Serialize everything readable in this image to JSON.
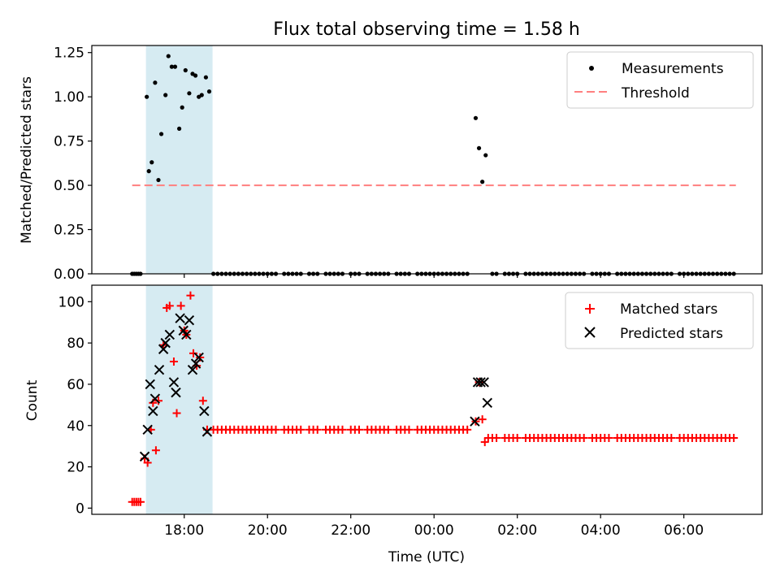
{
  "chart_data": {
    "type": "scatter",
    "title": "Flux total observing time = 1.58 h",
    "xlabel": "Time (UTC)",
    "x_unit": "hours since 00:00 (negative = previous day)",
    "xlim": [
      -8.22,
      7.88
    ],
    "xticks": [
      {
        "value": -6,
        "label": "18:00"
      },
      {
        "value": -4,
        "label": "20:00"
      },
      {
        "value": -2,
        "label": "22:00"
      },
      {
        "value": 0,
        "label": "00:00"
      },
      {
        "value": 2,
        "label": "02:00"
      },
      {
        "value": 4,
        "label": "04:00"
      },
      {
        "value": 6,
        "label": "06:00"
      }
    ],
    "observing_window": {
      "start": -6.92,
      "end": -5.32
    },
    "colors": {
      "measure": "#000000",
      "threshold": "#ff7f7f",
      "window": "#add8e6",
      "matched": "#ff0000",
      "predicted": "#000000"
    },
    "top": {
      "ylabel": "Matched/Predicted stars",
      "ylim": [
        0,
        1.29
      ],
      "yticks": [
        "0.00",
        "0.25",
        "0.50",
        "0.75",
        "1.00",
        "1.25"
      ],
      "threshold": {
        "value": 0.5,
        "x_start": -7.25,
        "x_end": 7.25
      },
      "legend": {
        "position": "upper right",
        "measure_label": "Measurements",
        "threshold_label": "Threshold"
      },
      "measurements": [
        [
          -7.25,
          0
        ],
        [
          -7.2,
          0
        ],
        [
          -7.15,
          0
        ],
        [
          -7.1,
          0
        ],
        [
          -7.05,
          0
        ],
        [
          -6.9,
          1.0
        ],
        [
          -6.85,
          0.58
        ],
        [
          -6.78,
          0.63
        ],
        [
          -6.7,
          1.08
        ],
        [
          -6.62,
          0.53
        ],
        [
          -6.55,
          0.79
        ],
        [
          -6.45,
          1.01
        ],
        [
          -6.38,
          1.23
        ],
        [
          -6.3,
          1.17
        ],
        [
          -6.22,
          1.17
        ],
        [
          -6.12,
          0.82
        ],
        [
          -6.05,
          0.94
        ],
        [
          -5.97,
          1.15
        ],
        [
          -5.88,
          1.02
        ],
        [
          -5.8,
          1.13
        ],
        [
          -5.73,
          1.12
        ],
        [
          -5.65,
          1.0
        ],
        [
          -5.58,
          1.01
        ],
        [
          -5.48,
          1.11
        ],
        [
          -5.4,
          1.03
        ],
        [
          -5.3,
          0
        ],
        [
          -5.2,
          0
        ],
        [
          -5.1,
          0
        ],
        [
          -5.0,
          0
        ],
        [
          -4.9,
          0
        ],
        [
          -4.8,
          0
        ],
        [
          -4.7,
          0
        ],
        [
          -4.6,
          0
        ],
        [
          -4.5,
          0
        ],
        [
          -4.4,
          0
        ],
        [
          -4.3,
          0
        ],
        [
          -4.2,
          0
        ],
        [
          -4.1,
          0
        ],
        [
          -4.0,
          0
        ],
        [
          -3.9,
          0
        ],
        [
          -3.8,
          0
        ],
        [
          -3.6,
          0
        ],
        [
          -3.5,
          0
        ],
        [
          -3.4,
          0
        ],
        [
          -3.3,
          0
        ],
        [
          -3.2,
          0
        ],
        [
          -3.0,
          0
        ],
        [
          -2.9,
          0
        ],
        [
          -2.8,
          0
        ],
        [
          -2.6,
          0
        ],
        [
          -2.5,
          0
        ],
        [
          -2.4,
          0
        ],
        [
          -2.3,
          0
        ],
        [
          -2.2,
          0
        ],
        [
          -2.0,
          0
        ],
        [
          -1.9,
          0
        ],
        [
          -1.8,
          0
        ],
        [
          -1.6,
          0
        ],
        [
          -1.5,
          0
        ],
        [
          -1.4,
          0
        ],
        [
          -1.3,
          0
        ],
        [
          -1.2,
          0
        ],
        [
          -1.1,
          0
        ],
        [
          -0.9,
          0
        ],
        [
          -0.8,
          0
        ],
        [
          -0.7,
          0
        ],
        [
          -0.6,
          0
        ],
        [
          -0.4,
          0
        ],
        [
          -0.3,
          0
        ],
        [
          -0.2,
          0
        ],
        [
          -0.1,
          0
        ],
        [
          0.0,
          0
        ],
        [
          0.1,
          0
        ],
        [
          0.2,
          0
        ],
        [
          0.3,
          0
        ],
        [
          0.4,
          0
        ],
        [
          0.5,
          0
        ],
        [
          0.6,
          0
        ],
        [
          0.7,
          0
        ],
        [
          0.8,
          0
        ],
        [
          1.0,
          0.88
        ],
        [
          1.08,
          0.71
        ],
        [
          1.16,
          0.52
        ],
        [
          1.24,
          0.67
        ],
        [
          1.4,
          0
        ],
        [
          1.5,
          0
        ],
        [
          1.7,
          0
        ],
        [
          1.8,
          0
        ],
        [
          1.9,
          0
        ],
        [
          2.0,
          0
        ],
        [
          2.2,
          0
        ],
        [
          2.3,
          0
        ],
        [
          2.4,
          0
        ],
        [
          2.5,
          0
        ],
        [
          2.6,
          0
        ],
        [
          2.7,
          0
        ],
        [
          2.8,
          0
        ],
        [
          2.9,
          0
        ],
        [
          3.0,
          0
        ],
        [
          3.1,
          0
        ],
        [
          3.2,
          0
        ],
        [
          3.3,
          0
        ],
        [
          3.4,
          0
        ],
        [
          3.5,
          0
        ],
        [
          3.6,
          0
        ],
        [
          3.8,
          0
        ],
        [
          3.9,
          0
        ],
        [
          4.0,
          0
        ],
        [
          4.1,
          0
        ],
        [
          4.2,
          0
        ],
        [
          4.4,
          0
        ],
        [
          4.5,
          0
        ],
        [
          4.6,
          0
        ],
        [
          4.7,
          0
        ],
        [
          4.8,
          0
        ],
        [
          4.9,
          0
        ],
        [
          5.0,
          0
        ],
        [
          5.1,
          0
        ],
        [
          5.2,
          0
        ],
        [
          5.3,
          0
        ],
        [
          5.4,
          0
        ],
        [
          5.5,
          0
        ],
        [
          5.6,
          0
        ],
        [
          5.7,
          0
        ],
        [
          5.9,
          0
        ],
        [
          6.0,
          0
        ],
        [
          6.1,
          0
        ],
        [
          6.2,
          0
        ],
        [
          6.3,
          0
        ],
        [
          6.4,
          0
        ],
        [
          6.5,
          0
        ],
        [
          6.6,
          0
        ],
        [
          6.7,
          0
        ],
        [
          6.8,
          0
        ],
        [
          6.9,
          0
        ],
        [
          7.0,
          0
        ],
        [
          7.1,
          0
        ],
        [
          7.2,
          0
        ]
      ]
    },
    "bottom": {
      "ylabel": "Count",
      "ylim": [
        -3,
        108
      ],
      "yticks": [
        "0",
        "20",
        "40",
        "60",
        "80",
        "100"
      ],
      "legend": {
        "position": "upper right",
        "matched_label": "Matched stars",
        "predicted_label": "Predicted stars"
      },
      "matched": [
        [
          -7.25,
          3
        ],
        [
          -7.2,
          3
        ],
        [
          -7.15,
          3
        ],
        [
          -7.1,
          3
        ],
        [
          -7.05,
          3
        ],
        [
          -6.95,
          24
        ],
        [
          -6.88,
          22
        ],
        [
          -6.8,
          38
        ],
        [
          -6.75,
          51
        ],
        [
          -6.68,
          28
        ],
        [
          -6.62,
          52
        ],
        [
          -6.5,
          79
        ],
        [
          -6.42,
          97
        ],
        [
          -6.35,
          98
        ],
        [
          -6.25,
          71
        ],
        [
          -6.18,
          46
        ],
        [
          -6.08,
          98
        ],
        [
          -6.0,
          86
        ],
        [
          -5.95,
          84
        ],
        [
          -5.85,
          103
        ],
        [
          -5.78,
          75
        ],
        [
          -5.7,
          69
        ],
        [
          -5.62,
          73
        ],
        [
          -5.55,
          52
        ],
        [
          -5.45,
          38
        ],
        [
          -5.3,
          38
        ],
        [
          -5.2,
          38
        ],
        [
          -5.1,
          38
        ],
        [
          -5.0,
          38
        ],
        [
          -4.9,
          38
        ],
        [
          -4.8,
          38
        ],
        [
          -4.7,
          38
        ],
        [
          -4.6,
          38
        ],
        [
          -4.5,
          38
        ],
        [
          -4.4,
          38
        ],
        [
          -4.3,
          38
        ],
        [
          -4.2,
          38
        ],
        [
          -4.1,
          38
        ],
        [
          -4.0,
          38
        ],
        [
          -3.9,
          38
        ],
        [
          -3.8,
          38
        ],
        [
          -3.6,
          38
        ],
        [
          -3.5,
          38
        ],
        [
          -3.4,
          38
        ],
        [
          -3.3,
          38
        ],
        [
          -3.2,
          38
        ],
        [
          -3.0,
          38
        ],
        [
          -2.9,
          38
        ],
        [
          -2.8,
          38
        ],
        [
          -2.6,
          38
        ],
        [
          -2.5,
          38
        ],
        [
          -2.4,
          38
        ],
        [
          -2.3,
          38
        ],
        [
          -2.2,
          38
        ],
        [
          -2.0,
          38
        ],
        [
          -1.9,
          38
        ],
        [
          -1.8,
          38
        ],
        [
          -1.6,
          38
        ],
        [
          -1.5,
          38
        ],
        [
          -1.4,
          38
        ],
        [
          -1.3,
          38
        ],
        [
          -1.2,
          38
        ],
        [
          -1.1,
          38
        ],
        [
          -0.9,
          38
        ],
        [
          -0.8,
          38
        ],
        [
          -0.7,
          38
        ],
        [
          -0.6,
          38
        ],
        [
          -0.4,
          38
        ],
        [
          -0.3,
          38
        ],
        [
          -0.2,
          38
        ],
        [
          -0.1,
          38
        ],
        [
          0.0,
          38
        ],
        [
          0.1,
          38
        ],
        [
          0.2,
          38
        ],
        [
          0.3,
          38
        ],
        [
          0.4,
          38
        ],
        [
          0.5,
          38
        ],
        [
          0.6,
          38
        ],
        [
          0.7,
          38
        ],
        [
          0.8,
          38
        ],
        [
          1.0,
          42
        ],
        [
          1.08,
          61
        ],
        [
          1.16,
          43
        ],
        [
          1.22,
          32
        ],
        [
          1.3,
          34
        ],
        [
          1.4,
          34
        ],
        [
          1.5,
          34
        ],
        [
          1.7,
          34
        ],
        [
          1.8,
          34
        ],
        [
          1.9,
          34
        ],
        [
          2.0,
          34
        ],
        [
          2.2,
          34
        ],
        [
          2.3,
          34
        ],
        [
          2.4,
          34
        ],
        [
          2.5,
          34
        ],
        [
          2.6,
          34
        ],
        [
          2.7,
          34
        ],
        [
          2.8,
          34
        ],
        [
          2.9,
          34
        ],
        [
          3.0,
          34
        ],
        [
          3.1,
          34
        ],
        [
          3.2,
          34
        ],
        [
          3.3,
          34
        ],
        [
          3.4,
          34
        ],
        [
          3.5,
          34
        ],
        [
          3.6,
          34
        ],
        [
          3.8,
          34
        ],
        [
          3.9,
          34
        ],
        [
          4.0,
          34
        ],
        [
          4.1,
          34
        ],
        [
          4.2,
          34
        ],
        [
          4.4,
          34
        ],
        [
          4.5,
          34
        ],
        [
          4.6,
          34
        ],
        [
          4.7,
          34
        ],
        [
          4.8,
          34
        ],
        [
          4.9,
          34
        ],
        [
          5.0,
          34
        ],
        [
          5.1,
          34
        ],
        [
          5.2,
          34
        ],
        [
          5.3,
          34
        ],
        [
          5.4,
          34
        ],
        [
          5.5,
          34
        ],
        [
          5.6,
          34
        ],
        [
          5.7,
          34
        ],
        [
          5.9,
          34
        ],
        [
          6.0,
          34
        ],
        [
          6.1,
          34
        ],
        [
          6.2,
          34
        ],
        [
          6.3,
          34
        ],
        [
          6.4,
          34
        ],
        [
          6.5,
          34
        ],
        [
          6.6,
          34
        ],
        [
          6.7,
          34
        ],
        [
          6.8,
          34
        ],
        [
          6.9,
          34
        ],
        [
          7.0,
          34
        ],
        [
          7.1,
          34
        ],
        [
          7.2,
          34
        ]
      ],
      "predicted": [
        [
          -6.95,
          25
        ],
        [
          -6.88,
          38
        ],
        [
          -6.82,
          60
        ],
        [
          -6.75,
          47
        ],
        [
          -6.7,
          53
        ],
        [
          -6.6,
          67
        ],
        [
          -6.5,
          77
        ],
        [
          -6.45,
          80
        ],
        [
          -6.35,
          84
        ],
        [
          -6.25,
          61
        ],
        [
          -6.2,
          56
        ],
        [
          -6.1,
          92
        ],
        [
          -6.02,
          86
        ],
        [
          -5.95,
          84
        ],
        [
          -5.88,
          91
        ],
        [
          -5.8,
          67
        ],
        [
          -5.72,
          70
        ],
        [
          -5.65,
          73
        ],
        [
          -5.52,
          47
        ],
        [
          -5.45,
          37
        ],
        [
          0.98,
          42
        ],
        [
          1.05,
          61
        ],
        [
          1.12,
          61
        ],
        [
          1.2,
          61
        ],
        [
          1.28,
          51
        ]
      ]
    }
  }
}
